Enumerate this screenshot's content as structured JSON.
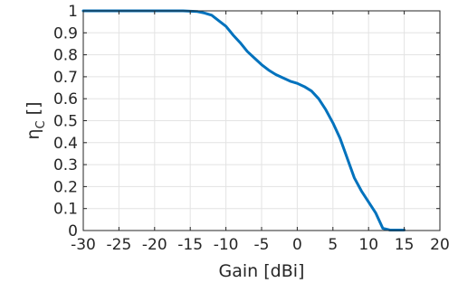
{
  "chart_data": {
    "type": "line",
    "title": "",
    "xlabel": "Gain [dBi]",
    "ylabel": "η_C []",
    "ylabel_main": "η",
    "ylabel_sub": "C",
    "ylabel_unit": " []",
    "xlim": [
      -30,
      20
    ],
    "ylim": [
      0,
      1
    ],
    "xticks": [
      -30,
      -25,
      -20,
      -15,
      -10,
      -5,
      0,
      5,
      10,
      15,
      20
    ],
    "yticks": [
      0,
      0.1,
      0.2,
      0.3,
      0.4,
      0.5,
      0.6,
      0.7,
      0.8,
      0.9,
      1
    ],
    "grid": true,
    "series": [
      {
        "color": "#0072BD",
        "x": [
          -30,
          -25,
          -20,
          -16,
          -14,
          -13,
          -12,
          -11,
          -10,
          -9,
          -8,
          -7,
          -6,
          -5,
          -4,
          -3,
          -2,
          -1,
          0,
          1,
          2,
          3,
          4,
          5,
          6,
          7,
          8,
          9,
          10,
          11,
          12,
          13,
          14,
          15
        ],
        "y": [
          1,
          1,
          1,
          1,
          0.997,
          0.99,
          0.98,
          0.955,
          0.93,
          0.89,
          0.855,
          0.815,
          0.785,
          0.755,
          0.73,
          0.71,
          0.695,
          0.68,
          0.67,
          0.655,
          0.635,
          0.6,
          0.55,
          0.49,
          0.42,
          0.33,
          0.24,
          0.18,
          0.13,
          0.08,
          0.01,
          0.002,
          0.002,
          0.002
        ]
      }
    ]
  }
}
